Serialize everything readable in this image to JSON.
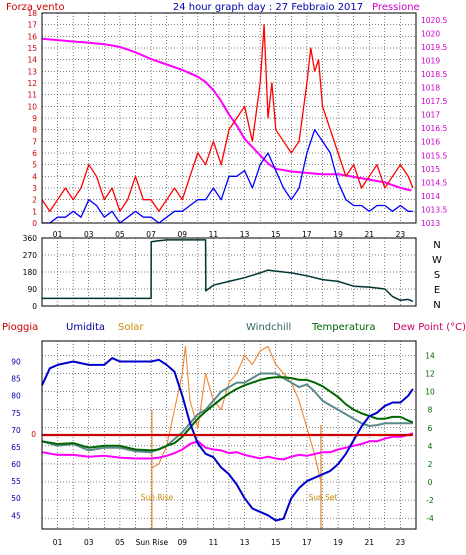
{
  "chart_data": [
    {
      "type": "line",
      "title": "24 hour graph day : 27 Febbraio 2017",
      "left_label": "Forza vento",
      "right_label": "Pressione",
      "x_ticks": [
        "01",
        "03",
        "05",
        "07",
        "09",
        "11",
        "13",
        "15",
        "17",
        "19",
        "21",
        "23"
      ],
      "y_left_range": [
        0,
        18
      ],
      "y_left_ticks": [
        "0",
        "1",
        "2",
        "3",
        "4",
        "5",
        "6",
        "7",
        "8",
        "9",
        "10",
        "11",
        "12",
        "13",
        "14",
        "15",
        "16",
        "17",
        "18"
      ],
      "y_right_range": [
        1013,
        1020.75
      ],
      "y_right_ticks": [
        "1013",
        "1013.5",
        "1014",
        "1014.5",
        "1015",
        "1015.5",
        "1016",
        "1016.5",
        "1017",
        "1017.5",
        "1018",
        "1018.5",
        "1019",
        "1019.5",
        "1020",
        "1020.5"
      ],
      "series": [
        {
          "name": "Pressione",
          "color": "#ff00ff",
          "axis": "right",
          "x": [
            0,
            1,
            2,
            3,
            4,
            5,
            6,
            7,
            8,
            9,
            10,
            10.5,
            11,
            11.5,
            12,
            12.5,
            13,
            13.5,
            14,
            14.5,
            15,
            16,
            17,
            18,
            19,
            20,
            21,
            22,
            23,
            23.7
          ],
          "y": [
            1019.8,
            1019.75,
            1019.7,
            1019.65,
            1019.6,
            1019.5,
            1019.3,
            1019.05,
            1018.85,
            1018.65,
            1018.4,
            1018.2,
            1017.9,
            1017.5,
            1017.0,
            1016.6,
            1016.1,
            1015.8,
            1015.5,
            1015.2,
            1015.0,
            1014.9,
            1014.85,
            1014.8,
            1014.8,
            1014.7,
            1014.6,
            1014.5,
            1014.3,
            1014.2
          ]
        },
        {
          "name": "wind-gust",
          "color": "#ff0000",
          "axis": "left",
          "x": [
            0,
            0.5,
            1,
            1.5,
            2,
            2.5,
            3,
            3.5,
            4,
            4.5,
            5,
            5.5,
            6,
            6.5,
            7,
            7.5,
            8,
            8.5,
            9,
            9.5,
            10,
            10.5,
            11,
            11.5,
            12,
            12.5,
            13,
            13.5,
            14,
            14.25,
            14.5,
            14.75,
            15,
            15.5,
            16,
            16.5,
            17,
            17.25,
            17.5,
            17.75,
            18,
            18.5,
            19,
            19.5,
            20,
            20.5,
            21,
            21.5,
            22,
            22.5,
            23,
            23.5,
            23.8
          ],
          "y": [
            2,
            1,
            2,
            3,
            2,
            3,
            5,
            4,
            2,
            3,
            1,
            2,
            4,
            2,
            2,
            1,
            2,
            3,
            2,
            4,
            6,
            5,
            7,
            5,
            8,
            9,
            10,
            7,
            12,
            17,
            9,
            12,
            8,
            7,
            6,
            7,
            12,
            15,
            13,
            14,
            10,
            8,
            6,
            4,
            5,
            3,
            4,
            5,
            3,
            4,
            5,
            4,
            3
          ]
        },
        {
          "name": "wind-avg",
          "color": "#0000ff",
          "axis": "left",
          "x": [
            0,
            0.5,
            1,
            1.5,
            2,
            2.5,
            3,
            3.5,
            4,
            4.5,
            5,
            5.5,
            6,
            6.5,
            7,
            7.5,
            8,
            8.5,
            9,
            9.5,
            10,
            10.5,
            11,
            11.5,
            12,
            12.5,
            13,
            13.5,
            14,
            14.5,
            15,
            15.5,
            16,
            16.5,
            17,
            17.5,
            18,
            18.5,
            19,
            19.5,
            20,
            20.5,
            21,
            21.5,
            22,
            22.5,
            23,
            23.5,
            23.8
          ],
          "y": [
            0,
            0,
            0.5,
            0.5,
            1,
            0.5,
            2,
            1.5,
            0.5,
            1,
            0,
            0.5,
            1,
            0.5,
            0.5,
            0,
            0.5,
            1,
            1,
            1.5,
            2,
            2,
            3,
            2,
            4,
            4,
            4.5,
            3,
            5,
            6,
            4.5,
            3,
            2,
            3,
            6,
            8,
            7,
            6,
            3.5,
            2,
            1.5,
            1.5,
            1,
            1.5,
            1.5,
            1,
            1.5,
            1,
            1
          ]
        }
      ]
    },
    {
      "type": "line",
      "title": "",
      "y_range": [
        0,
        360
      ],
      "y_ticks": [
        "0",
        "90",
        "180",
        "270",
        "360"
      ],
      "right_labels": [
        "N",
        "W",
        "S",
        "E",
        "N"
      ],
      "series": [
        {
          "name": "wind-direction",
          "color": "#003333",
          "x": [
            0,
            7,
            7.01,
            7.5,
            8,
            9,
            10.5,
            10.51,
            11,
            12,
            13,
            14,
            14.5,
            15,
            16,
            17,
            18,
            19,
            20,
            21,
            22,
            22.5,
            23,
            23.5,
            23.8
          ],
          "y": [
            40,
            40,
            340,
            345,
            350,
            350,
            350,
            80,
            110,
            130,
            150,
            175,
            190,
            185,
            175,
            160,
            140,
            130,
            105,
            100,
            90,
            50,
            30,
            35,
            25
          ]
        }
      ]
    },
    {
      "type": "line",
      "title": "",
      "legend": [
        "Pioggia",
        "Umidita",
        "Solar",
        "Windchill",
        "Temperatura",
        "Dew Point (°C)"
      ],
      "legend_colors": [
        "#cc0000",
        "#000099",
        "#cc8800",
        "#336666",
        "#006600",
        "#cc0066"
      ],
      "x_ticks": [
        "01",
        "03",
        "05",
        "Sun Rise",
        "09",
        "11",
        "13",
        "15",
        "17",
        "19",
        "21",
        "23"
      ],
      "y_left_range": [
        41,
        96
      ],
      "y_left_ticks": [
        "45",
        "50",
        "55",
        "60",
        "65",
        "70",
        "75",
        "80",
        "85",
        "90"
      ],
      "y_right_range": [
        -5.2,
        15.6
      ],
      "y_right_ticks": [
        "-4",
        "-2",
        "0",
        "2",
        "4",
        "6",
        "8",
        "10",
        "12",
        "14"
      ],
      "rain_axis_label": "0",
      "annotations": [
        "Sun Rise",
        "Sun Set"
      ],
      "sun_rise_x": 7.05,
      "sun_set_x": 17.9,
      "series": [
        {
          "name": "Umidita",
          "color": "#0000cc",
          "axis": "left",
          "x": [
            0,
            0.3,
            0.5,
            1,
            2,
            3,
            4,
            4.5,
            5,
            6,
            7,
            7.5,
            8,
            8.5,
            9,
            9.5,
            10,
            10.5,
            11,
            11.5,
            12,
            12.5,
            13,
            13.5,
            14,
            14.5,
            15,
            15.5,
            16,
            16.5,
            17,
            17.5,
            18,
            18.5,
            19,
            19.5,
            20,
            20.5,
            21,
            21.5,
            22,
            22.5,
            23,
            23.5,
            23.8
          ],
          "y": [
            83,
            86,
            88,
            89,
            90,
            89,
            89,
            91,
            90,
            90,
            90,
            90.5,
            89,
            87,
            80,
            72,
            66,
            63,
            62,
            59,
            57,
            54,
            50,
            47,
            46,
            45,
            43.5,
            44,
            50,
            53,
            55,
            56,
            57,
            58,
            60,
            63,
            67,
            71,
            74,
            75,
            77,
            78,
            78,
            80,
            82
          ]
        },
        {
          "name": "Solar",
          "color": "#ee8833",
          "axis": "right",
          "x": [
            7,
            7.5,
            8,
            8.5,
            9,
            9.2,
            9.5,
            10,
            10.5,
            11,
            11.5,
            12,
            12.5,
            13,
            13.5,
            14,
            14.5,
            15,
            15.5,
            16,
            16.5,
            17,
            17.5,
            17.9
          ],
          "y": [
            1.5,
            2,
            4,
            8,
            12,
            15,
            9,
            6,
            12,
            9,
            8,
            11,
            12,
            14,
            13,
            14.5,
            15,
            13,
            12,
            11,
            9,
            6,
            3,
            0
          ]
        },
        {
          "name": "Windchill",
          "color": "#5a8a8a",
          "axis": "right",
          "x": [
            0,
            1,
            2,
            3,
            4,
            5,
            6,
            7,
            8,
            9,
            9.5,
            10,
            10.5,
            11,
            11.5,
            12,
            12.5,
            13,
            13.5,
            14,
            14.5,
            15,
            15.5,
            16,
            16.5,
            17,
            17.5,
            18,
            18.5,
            19,
            19.5,
            20,
            20.5,
            21,
            21.5,
            22,
            22.5,
            23,
            23.8
          ],
          "y": [
            4.5,
            4,
            4.2,
            3.5,
            3.8,
            3.8,
            3.4,
            3.3,
            4,
            5.5,
            6.5,
            7.5,
            8,
            9,
            10,
            10.5,
            11,
            11,
            11.5,
            12,
            12,
            12,
            11.5,
            11,
            10.5,
            10.8,
            10,
            9,
            8.5,
            8,
            7.5,
            7,
            6.5,
            6.2,
            6.3,
            6.5,
            6.5,
            6.5,
            6.5
          ]
        },
        {
          "name": "Temperatura",
          "color": "#006600",
          "axis": "right",
          "x": [
            0,
            1,
            2,
            3,
            4,
            5,
            6,
            7,
            7.5,
            8,
            8.5,
            9,
            9.5,
            10,
            10.5,
            11,
            11.5,
            12,
            12.5,
            13,
            13.5,
            14,
            14.5,
            15,
            15.5,
            16,
            16.5,
            17,
            17.5,
            18,
            18.5,
            19,
            19.5,
            20,
            20.5,
            21,
            21.5,
            22,
            22.5,
            23,
            23.5,
            23.8
          ],
          "y": [
            4.5,
            4.2,
            4.3,
            3.8,
            4,
            4,
            3.6,
            3.5,
            3.6,
            4,
            4.3,
            5,
            6,
            7,
            7.8,
            8.5,
            9.2,
            9.8,
            10.3,
            10.7,
            11,
            11.3,
            11.5,
            11.6,
            11.6,
            11.5,
            11.3,
            11.3,
            11,
            10.6,
            10,
            9.4,
            8.6,
            8,
            7.6,
            7.3,
            7,
            7,
            7.2,
            7.2,
            6.8,
            6.6
          ]
        },
        {
          "name": "Dew Point",
          "color": "#ff00ff",
          "axis": "right",
          "x": [
            0,
            1,
            2,
            3,
            4,
            5,
            6,
            7,
            7.5,
            8,
            8.5,
            9,
            9.5,
            10,
            10.5,
            11,
            11.5,
            12,
            12.5,
            13,
            13.5,
            14,
            14.5,
            15,
            15.5,
            16,
            16.5,
            17,
            17.5,
            18,
            18.5,
            19,
            19.5,
            20,
            20.5,
            21,
            21.5,
            22,
            22.5,
            23,
            23.5,
            23.8
          ],
          "y": [
            3.3,
            3,
            3,
            2.8,
            2.9,
            2.7,
            2.6,
            2.6,
            2.7,
            2.9,
            3.2,
            3.6,
            4.2,
            4.5,
            3.8,
            3.6,
            3.5,
            3.2,
            3.3,
            3,
            2.8,
            2.6,
            2.8,
            2.6,
            2.5,
            2.8,
            3,
            2.9,
            3.1,
            3.3,
            3.3,
            3.6,
            3.8,
            4,
            4.2,
            4.5,
            4.5,
            4.8,
            5,
            5,
            5.2,
            5.4
          ]
        },
        {
          "name": "Pioggia",
          "color": "#cc0000",
          "axis": "rain",
          "x": [
            0,
            23.8
          ],
          "y": [
            0,
            0
          ]
        }
      ]
    }
  ]
}
